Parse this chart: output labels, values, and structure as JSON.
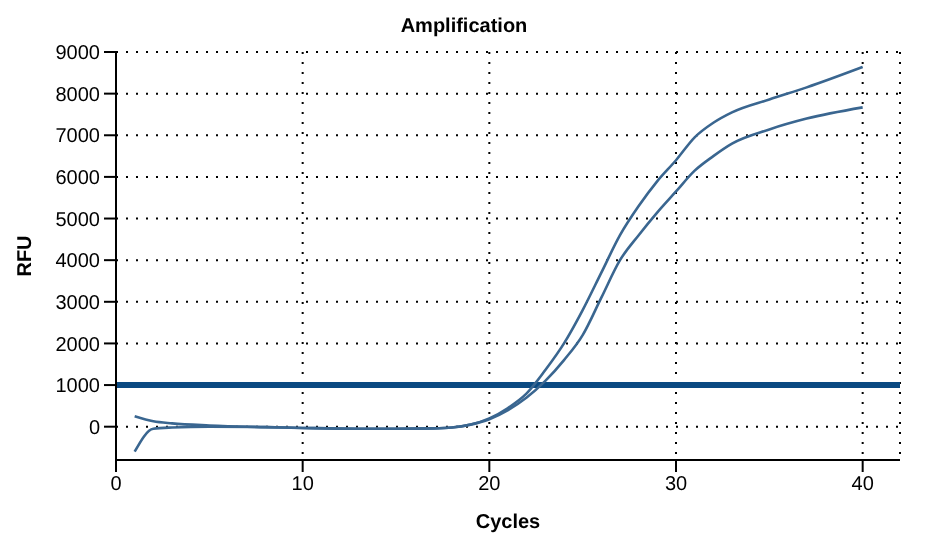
{
  "chart_data": {
    "type": "line",
    "title": "Amplification",
    "xlabel": "Cycles",
    "ylabel": "RFU",
    "xlim": [
      0,
      42
    ],
    "xticks": [
      0,
      10,
      20,
      30,
      40
    ],
    "ylim": [
      -800,
      9000
    ],
    "yticks": [
      0,
      1000,
      2000,
      3000,
      4000,
      5000,
      6000,
      7000,
      8000,
      9000
    ],
    "grid": true,
    "marker": "none",
    "line_style": "solid",
    "series": [
      {
        "color": "#3a6690",
        "x": [
          1,
          2,
          3,
          5,
          8,
          10,
          13,
          15,
          17,
          18,
          19,
          20,
          21,
          22,
          23,
          24,
          25,
          26,
          27,
          28,
          29,
          30,
          31,
          32,
          33,
          35,
          37,
          40
        ],
        "values": [
          250,
          130,
          80,
          30,
          -10,
          -30,
          -50,
          -50,
          -40,
          -20,
          50,
          200,
          450,
          800,
          1360,
          2000,
          2800,
          3700,
          4600,
          5300,
          5900,
          6400,
          6950,
          7300,
          7550,
          7860,
          8150,
          8640
        ]
      },
      {
        "color": "#3a6690",
        "x": [
          1,
          2,
          3,
          5,
          8,
          10,
          13,
          15,
          17,
          18,
          19,
          20,
          21,
          22,
          23,
          24,
          25,
          26,
          27,
          28,
          29,
          30,
          31,
          32,
          33,
          35,
          37,
          40
        ],
        "values": [
          -600,
          -50,
          -20,
          0,
          -10,
          -30,
          -50,
          -50,
          -40,
          -20,
          50,
          180,
          400,
          700,
          1100,
          1600,
          2200,
          3100,
          4000,
          4600,
          5150,
          5650,
          6150,
          6500,
          6800,
          7140,
          7400,
          7670
        ]
      }
    ],
    "ref_lines": [
      {
        "axis": "y",
        "value": 1000,
        "color": "#0b4a82"
      }
    ]
  }
}
